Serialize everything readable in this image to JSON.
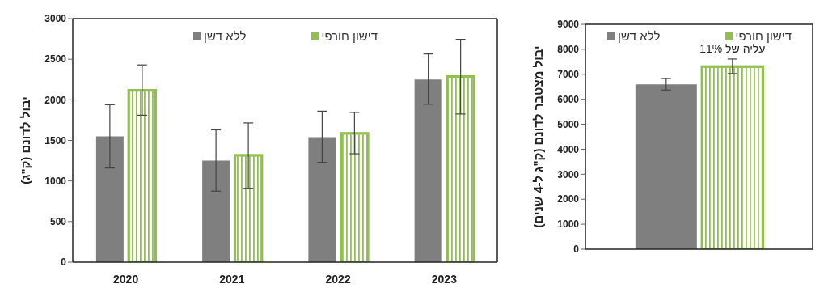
{
  "chart_data": [
    {
      "type": "bar",
      "categories": [
        "2020",
        "2021",
        "2022",
        "2023"
      ],
      "ylabel": "יבול לדונם (ק\"ג)",
      "ylim": [
        0,
        3000
      ],
      "yticks": [
        0,
        500,
        1000,
        1500,
        2000,
        2500,
        3000
      ],
      "grid": false,
      "legend": "top",
      "series": [
        {
          "name": "ללא דשן",
          "color": "#7f7f7f",
          "values": [
            1550,
            1250,
            1540,
            2250
          ],
          "errors": [
            [
              1160,
              1940
            ],
            [
              875,
              1630
            ],
            [
              1230,
              1860
            ],
            [
              1945,
              2565
            ]
          ]
        },
        {
          "name": "דישון חורפי",
          "color": "#92c050",
          "values": [
            2120,
            1320,
            1590,
            2290
          ],
          "errors": [
            [
              1810,
              2430
            ],
            [
              910,
              1715
            ],
            [
              1335,
              1845
            ],
            [
              1825,
              2745
            ]
          ]
        }
      ]
    },
    {
      "type": "bar",
      "categories": [
        null
      ],
      "ylabel": "יבול מצטבר לדונם (ק\"ג ל-4 שנים)",
      "ylim": [
        0,
        9000
      ],
      "yticks": [
        0,
        1000,
        2000,
        3000,
        4000,
        5000,
        6000,
        7000,
        8000,
        9000
      ],
      "grid": false,
      "legend": "top",
      "annotations": [
        "עליה של 11%"
      ],
      "series": [
        {
          "name": "ללא דשן",
          "color": "#7f7f7f",
          "values": [
            6600
          ],
          "errors": [
            [
              6370,
              6830
            ]
          ]
        },
        {
          "name": "דישון חורפי",
          "color": "#92c050",
          "values": [
            7320
          ],
          "errors": [
            [
              7030,
              7610
            ]
          ]
        }
      ]
    }
  ]
}
